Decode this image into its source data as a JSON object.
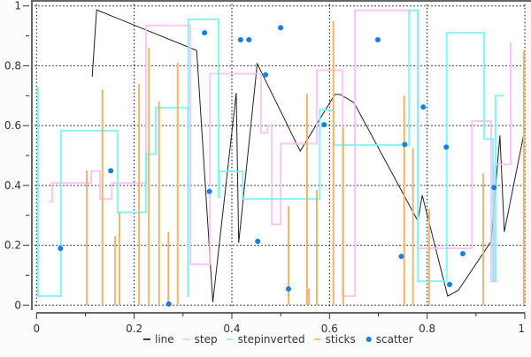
{
  "chart_data": {
    "type": "line",
    "title": "",
    "xlabel": "",
    "ylabel": "",
    "xlim": [
      0,
      1
    ],
    "ylim": [
      0,
      1
    ],
    "grid": true,
    "legend_position": "bottom",
    "x_ticks": [
      "0",
      "0.2",
      "0.4",
      "0.6",
      "0.8",
      "1"
    ],
    "y_ticks": [
      "0",
      "0.2",
      "0.4",
      "0.6",
      "0.8",
      "1"
    ],
    "series": [
      {
        "name": "line",
        "kind": "line",
        "color": "#222222",
        "x": [
          0.114,
          0.123,
          0.328,
          0.361,
          0.409,
          0.414,
          0.452,
          0.54,
          0.611,
          0.622,
          0.65,
          0.781,
          0.79,
          0.842,
          0.864,
          0.931,
          0.949,
          0.958,
          1.0
        ],
        "y": [
          0.763,
          0.987,
          0.851,
          0.01,
          0.709,
          0.208,
          0.807,
          0.515,
          0.704,
          0.704,
          0.677,
          0.281,
          0.367,
          0.03,
          0.05,
          0.213,
          0.567,
          0.245,
          0.588
        ]
      },
      {
        "name": "step",
        "kind": "step-post",
        "color": "#f9bdf5",
        "x": [
          0.025,
          0.032,
          0.112,
          0.13,
          0.154,
          0.224,
          0.315,
          0.355,
          0.46,
          0.473,
          0.482,
          0.5,
          0.574,
          0.627,
          0.652,
          0.781,
          0.892,
          0.931,
          0.937,
          0.971
        ],
        "y": [
          0.346,
          0.408,
          0.448,
          0.355,
          0.408,
          0.935,
          0.136,
          0.773,
          0.576,
          0.6,
          0.27,
          0.54,
          0.785,
          0.03,
          0.985,
          0.19,
          0.615,
          0.08,
          0.47,
          0.88
        ]
      },
      {
        "name": "stepinverted",
        "kind": "step-pre",
        "color": "#6ef5f5",
        "x": [
          0.003,
          0.05,
          0.166,
          0.224,
          0.244,
          0.31,
          0.311,
          0.373,
          0.374,
          0.422,
          0.58,
          0.609,
          0.763,
          0.781,
          0.84,
          0.917,
          0.935,
          0.94,
          0.957
        ],
        "y": [
          0.73,
          0.03,
          0.583,
          0.31,
          0.505,
          0.66,
          0.03,
          0.955,
          0.36,
          0.447,
          0.355,
          0.652,
          0.535,
          0.985,
          0.08,
          0.91,
          0.555,
          0.08,
          0.7
        ]
      },
      {
        "name": "sticks",
        "kind": "sticks",
        "color": "#f2b46a",
        "x": [
          0.103,
          0.135,
          0.161,
          0.17,
          0.21,
          0.23,
          0.251,
          0.27,
          0.289,
          0.516,
          0.554,
          0.558,
          0.574,
          0.608,
          0.628,
          0.753,
          0.771,
          0.804,
          0.915,
          0.998
        ],
        "y": [
          0.45,
          0.72,
          0.23,
          0.31,
          0.74,
          0.86,
          0.68,
          0.245,
          0.81,
          0.33,
          0.706,
          0.055,
          0.385,
          0.95,
          0.595,
          0.7,
          0.525,
          0.32,
          0.44,
          0.85
        ]
      },
      {
        "name": "scatter",
        "kind": "scatter",
        "color": "#1080f0",
        "x": [
          0.049,
          0.152,
          0.271,
          0.344,
          0.354,
          0.418,
          0.435,
          0.453,
          0.469,
          0.5,
          0.516,
          0.589,
          0.699,
          0.747,
          0.754,
          0.792,
          0.839,
          0.846,
          0.873,
          0.937
        ],
        "y": [
          0.19,
          0.449,
          0.004,
          0.91,
          0.38,
          0.887,
          0.887,
          0.213,
          0.77,
          0.927,
          0.054,
          0.603,
          0.887,
          0.163,
          0.537,
          0.662,
          0.528,
          0.069,
          0.172,
          0.393
        ]
      }
    ]
  }
}
